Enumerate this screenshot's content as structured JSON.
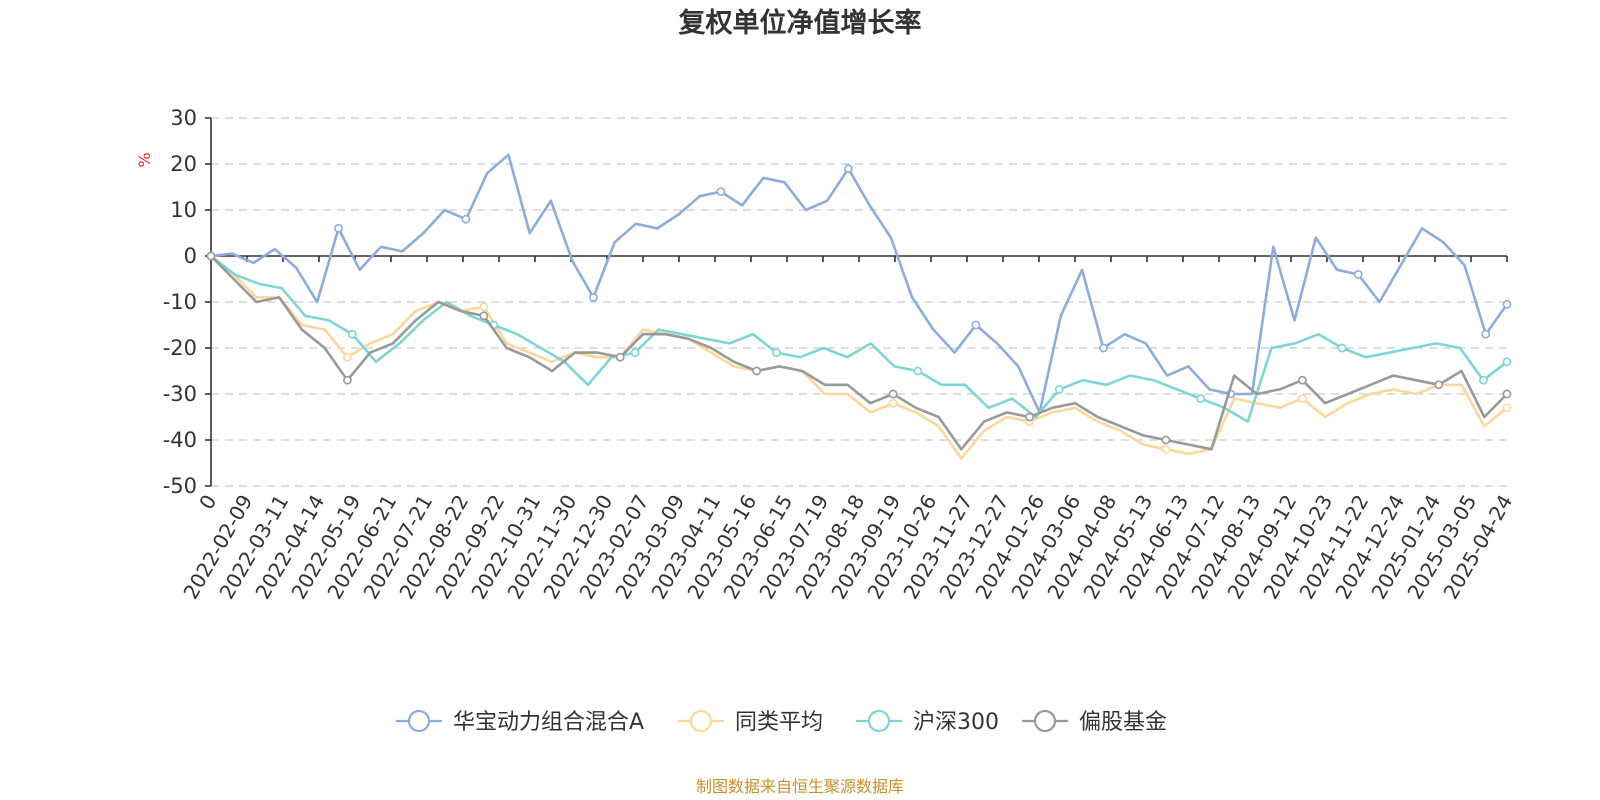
{
  "chart_data": {
    "type": "line",
    "title": "复权单位净值增长率",
    "ylabel": "%",
    "ylim": [
      -50,
      30
    ],
    "yticks": [
      "30",
      "20",
      "10",
      "0",
      "-10",
      "-20",
      "-30",
      "-40",
      "-50"
    ],
    "xticks": [
      "0",
      "2022-02-09",
      "2022-03-11",
      "2022-04-14",
      "2022-05-19",
      "2022-06-21",
      "2022-07-21",
      "2022-08-22",
      "2022-09-22",
      "2022-10-31",
      "2022-11-30",
      "2022-12-30",
      "2023-02-07",
      "2023-03-09",
      "2023-04-11",
      "2023-05-16",
      "2023-06-15",
      "2023-07-19",
      "2023-08-18",
      "2023-09-19",
      "2023-10-26",
      "2023-11-27",
      "2023-12-27",
      "2024-01-26",
      "2024-03-06",
      "2024-04-08",
      "2024-05-13",
      "2024-06-13",
      "2024-07-12",
      "2024-08-13",
      "2024-09-12",
      "2024-10-23",
      "2024-11-22",
      "2024-12-24",
      "2025-01-24",
      "2025-03-05",
      "2025-04-24"
    ],
    "legend_position": "bottom-center",
    "grid": true,
    "series": [
      {
        "name": "华宝动力组合混合A",
        "color": "#8eacd9",
        "values": [
          0,
          0.5,
          -1.5,
          1.5,
          -2.5,
          -10,
          6,
          -3,
          2,
          1,
          5,
          10,
          8,
          18,
          22,
          5,
          12,
          -1,
          -9,
          3,
          7,
          6,
          9,
          13,
          14,
          11,
          17,
          16,
          10,
          12,
          19,
          11,
          4,
          -9,
          -16,
          -21,
          -15,
          -19,
          -24,
          -34,
          -13,
          -3,
          -20,
          -17,
          -19,
          -26,
          -24,
          -29,
          -30,
          -30,
          2,
          -14,
          4,
          -3,
          -4,
          -10,
          -2,
          6,
          3,
          -2,
          -17,
          -10.5
        ]
      },
      {
        "name": "同类平均",
        "color": "#fbd79b",
        "values": [
          0,
          -4,
          -9,
          -9,
          -15,
          -16,
          -22,
          -19,
          -17,
          -12,
          -10,
          -12,
          -11,
          -19,
          -21,
          -23,
          -21,
          -22,
          -22,
          -16,
          -17,
          -18,
          -21,
          -24,
          -25,
          -24,
          -25,
          -30,
          -30,
          -34,
          -32,
          -34,
          -37,
          -44,
          -38,
          -35,
          -36,
          -34,
          -33,
          -36,
          -38,
          -41,
          -42,
          -43,
          -42,
          -31,
          -32,
          -33,
          -31,
          -35,
          -32,
          -30,
          -29,
          -30,
          -28,
          -28,
          -37,
          -33
        ]
      },
      {
        "name": "沪深300",
        "color": "#7fd4d6",
        "values": [
          0,
          -4,
          -6,
          -7,
          -13,
          -14,
          -17,
          -23,
          -19,
          -14,
          -10,
          -13,
          -15,
          -17,
          -20,
          -23,
          -28,
          -22,
          -21,
          -16,
          -17,
          -18,
          -19,
          -17,
          -21,
          -22,
          -20,
          -22,
          -19,
          -24,
          -25,
          -28,
          -28,
          -33,
          -31,
          -35,
          -29,
          -27,
          -28,
          -26,
          -27,
          -29,
          -31,
          -33,
          -36,
          -20,
          -19,
          -17,
          -20,
          -22,
          -21,
          -20,
          -19,
          -20,
          -27,
          -23
        ]
      },
      {
        "name": "偏股基金",
        "color": "#999999",
        "values": [
          0,
          -5,
          -10,
          -9,
          -16,
          -20,
          -27,
          -21,
          -19,
          -14,
          -10,
          -12,
          -13,
          -20,
          -22,
          -25,
          -21,
          -21,
          -22,
          -17,
          -17,
          -18,
          -20,
          -23,
          -25,
          -24,
          -25,
          -28,
          -28,
          -32,
          -30,
          -33,
          -35,
          -42,
          -36,
          -34,
          -35,
          -33,
          -32,
          -35,
          -37,
          -39,
          -40,
          -41,
          -42,
          -26,
          -30,
          -29,
          -27,
          -32,
          -30,
          -28,
          -26,
          -27,
          -28,
          -25,
          -35,
          -30
        ]
      }
    ],
    "source_note": "制图数据来自恒生聚源数据库"
  }
}
